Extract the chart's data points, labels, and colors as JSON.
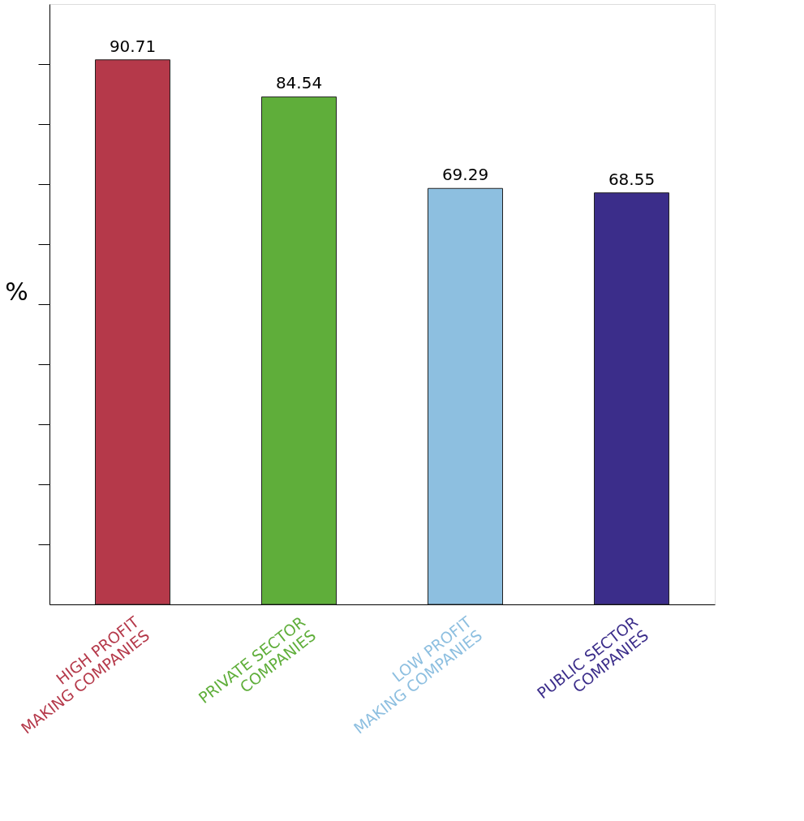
{
  "chart_data": {
    "type": "bar",
    "ylabel": "%",
    "categories": [
      "HIGH PROFIT MAKING COMPANIES",
      "PRIVATE SECTOR COMPANIES",
      "LOW PROFIT MAKING COMPANIES",
      "PUBLIC SECTOR COMPANIES"
    ],
    "values": [
      90.71,
      84.54,
      69.29,
      68.55
    ],
    "colors": [
      "#b5394a",
      "#5fae3a",
      "#8dbfe0",
      "#3b2d8a"
    ],
    "ylim": [
      0,
      100
    ],
    "yticks": [
      {
        "value": 10,
        "label": null
      },
      {
        "value": 20,
        "label": null
      },
      {
        "value": 30,
        "label": null
      },
      {
        "value": 40,
        "label": null
      },
      {
        "value": 50,
        "label": null
      },
      {
        "value": 60,
        "label": null
      },
      {
        "value": 70,
        "label": null
      },
      {
        "value": 80,
        "label": null
      },
      {
        "value": 90,
        "label": null
      }
    ],
    "tick_labels": "x",
    "grid": false,
    "data_labels": true
  }
}
